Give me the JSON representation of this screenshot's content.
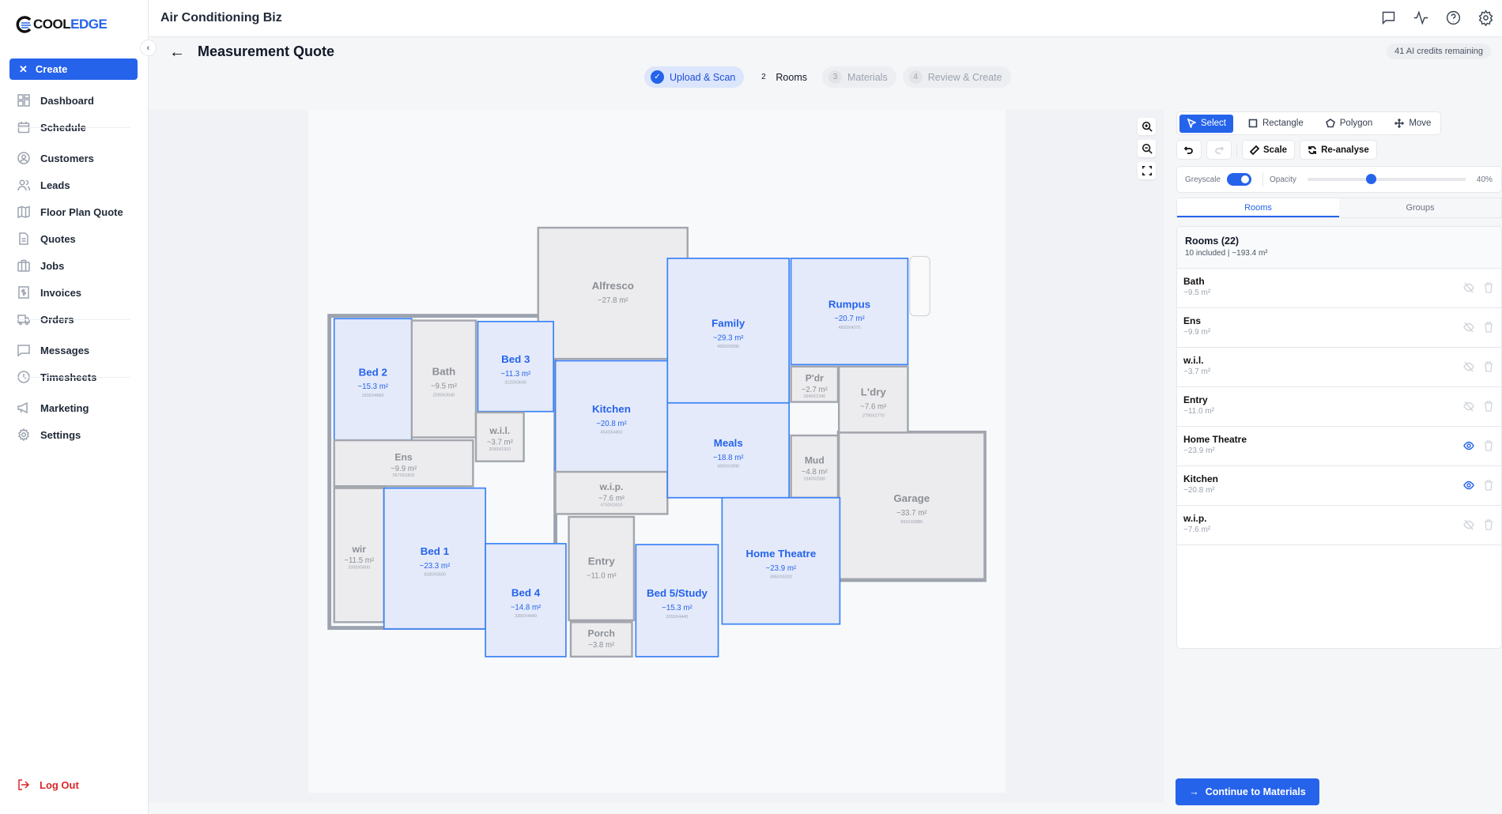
{
  "brand": {
    "logo_a": "COOL",
    "logo_b": "EDGE",
    "accent": "#2563eb"
  },
  "sidebar": {
    "create_label": "Create",
    "items": [
      {
        "label": "Dashboard",
        "icon": "dashboard-icon"
      },
      {
        "label": "Schedule",
        "icon": "calendar-icon"
      },
      {
        "label": "Customers",
        "icon": "user-circle-icon"
      },
      {
        "label": "Leads",
        "icon": "users-icon"
      },
      {
        "label": "Floor Plan Quote",
        "icon": "map-icon"
      },
      {
        "label": "Quotes",
        "icon": "document-icon"
      },
      {
        "label": "Jobs",
        "icon": "briefcase-icon"
      },
      {
        "label": "Invoices",
        "icon": "invoice-icon"
      },
      {
        "label": "Orders",
        "icon": "truck-icon"
      },
      {
        "label": "Messages",
        "icon": "message-icon"
      },
      {
        "label": "Timesheets",
        "icon": "clock-icon"
      },
      {
        "label": "Marketing",
        "icon": "megaphone-icon"
      },
      {
        "label": "Settings",
        "icon": "gear-icon"
      }
    ],
    "logout_label": "Log Out"
  },
  "header": {
    "title": "Air Conditioning Biz"
  },
  "page": {
    "title": "Measurement Quote",
    "credits": "41 AI credits remaining"
  },
  "steps": [
    {
      "num": "✓",
      "label": "Upload & Scan",
      "state": "done"
    },
    {
      "num": "2",
      "label": "Rooms",
      "state": "active"
    },
    {
      "num": "3",
      "label": "Materials",
      "state": "todo"
    },
    {
      "num": "4",
      "label": "Review & Create",
      "state": "todo"
    }
  ],
  "toolbar": {
    "tools": [
      "Select",
      "Rectangle",
      "Polygon",
      "Move"
    ],
    "active_tool": "Select",
    "scale_label": "Scale",
    "reanalyse_label": "Re-analyse",
    "greyscale_label": "Greyscale",
    "greyscale_on": true,
    "opacity_label": "Opacity",
    "opacity_value": "40%",
    "opacity_percent": 40
  },
  "tabs": [
    "Rooms",
    "Groups"
  ],
  "room_list": {
    "title": "Rooms (22)",
    "summary": "10 included | ~193.4 m²",
    "items": [
      {
        "name": "Bath",
        "area": "~9.5 m²",
        "visible": false
      },
      {
        "name": "Ens",
        "area": "~9.9 m²",
        "visible": false
      },
      {
        "name": "w.i.l.",
        "area": "~3.7 m²",
        "visible": false
      },
      {
        "name": "Entry",
        "area": "~11.0 m²",
        "visible": false
      },
      {
        "name": "Home Theatre",
        "area": "~23.9 m²",
        "visible": true
      },
      {
        "name": "Kitchen",
        "area": "~20.8 m²",
        "visible": true
      },
      {
        "name": "w.i.p.",
        "area": "~7.6 m²",
        "visible": false
      }
    ]
  },
  "plan_rooms": [
    {
      "name": "Alfresco",
      "area": "~27.8 m²",
      "included": false
    },
    {
      "name": "Bed 2",
      "area": "~15.3 m²",
      "included": true,
      "dims": "3100X4860"
    },
    {
      "name": "Bath",
      "area": "~9.5 m²",
      "included": false,
      "dims": "2590X3640"
    },
    {
      "name": "Bed 3",
      "area": "~11.3 m²",
      "included": true,
      "dims": "3120X3640"
    },
    {
      "name": "w.i.l.",
      "area": "~3.7 m²",
      "included": false,
      "dims": "2090X1910"
    },
    {
      "name": "Ens",
      "area": "~9.9 m²",
      "included": false,
      "dims": "5670X1815"
    },
    {
      "name": "Kitchen",
      "area": "~20.8 m²",
      "included": true,
      "dims": "4540X4450"
    },
    {
      "name": "w.i.p.",
      "area": "~7.6 m²",
      "included": false,
      "dims": "4750X1610"
    },
    {
      "name": "Family",
      "area": "~29.3 m²",
      "included": true,
      "dims": "4950X5890"
    },
    {
      "name": "Meals",
      "area": "~18.8 m²",
      "included": true,
      "dims": "4950X3990"
    },
    {
      "name": "Rumpus",
      "area": "~20.7 m²",
      "included": true,
      "dims": "4820X4370"
    },
    {
      "name": "P'dr",
      "area": "~2.7 m²",
      "included": false,
      "dims": "1640X1340"
    },
    {
      "name": "L'dry",
      "area": "~7.6 m²",
      "included": false,
      "dims": "2790X2770"
    },
    {
      "name": "Mud",
      "area": "~4.8 m²",
      "included": false,
      "dims": "1940X2580"
    },
    {
      "name": "Garage",
      "area": "~33.7 m²",
      "included": false,
      "dims": "5910X5880"
    },
    {
      "name": "wir",
      "area": "~11.5 m²",
      "included": false,
      "dims": "2000X5600"
    },
    {
      "name": "Bed 1",
      "area": "~23.3 m²",
      "included": true,
      "dims": "4180X5500"
    },
    {
      "name": "Bed 4",
      "area": "~14.8 m²",
      "included": true,
      "dims": "3350X4440"
    },
    {
      "name": "Entry",
      "area": "~11.0 m²",
      "included": false
    },
    {
      "name": "Porch",
      "area": "~3.8 m²",
      "included": false
    },
    {
      "name": "Bed 5/Study",
      "area": "~15.3 m²",
      "included": true,
      "dims": "3350X4440"
    },
    {
      "name": "Home Theatre",
      "area": "~23.9 m²",
      "included": true,
      "dims": "4950X5020"
    }
  ],
  "continue_label": "Continue to Materials"
}
